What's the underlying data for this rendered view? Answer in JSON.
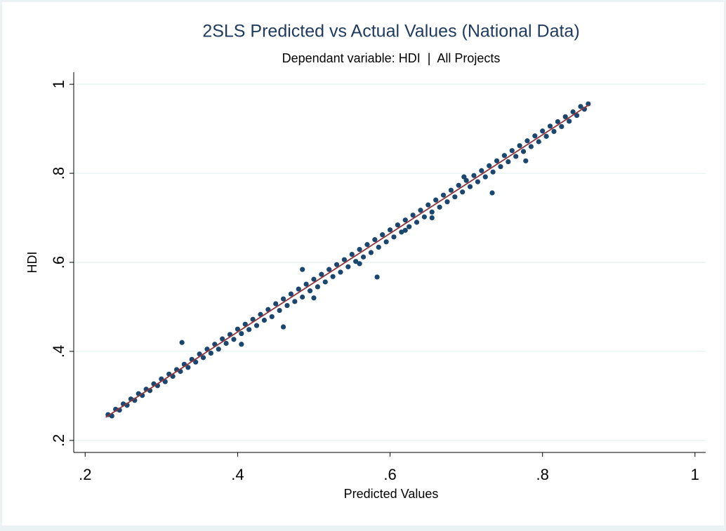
{
  "chart_data": {
    "type": "scatter",
    "title": "2SLS Predicted vs Actual Values (National Data)",
    "subtitle": "Dependant variable: HDI  |  All Projects",
    "x_label": "Predicted Values",
    "y_label": "HDI",
    "color": "#1a476f",
    "xlim": [
      0.185,
      1.014
    ],
    "ylim": [
      0.173,
      1.027
    ],
    "xticks": [
      {
        "value": 0.2,
        "label": ".2"
      },
      {
        "value": 0.4,
        "label": ".4"
      },
      {
        "value": 0.6,
        "label": ".6"
      },
      {
        "value": 0.8,
        "label": ".8"
      },
      1
    ],
    "yticks": [
      {
        "value": 0.2,
        "label": ".2"
      },
      {
        "value": 0.4,
        "label": ".4"
      },
      {
        "value": 0.6,
        "label": ".6"
      },
      {
        "value": 0.8,
        "label": ".8"
      },
      1
    ],
    "grid": true,
    "x": [
      0.23,
      0.235,
      0.24,
      0.245,
      0.25,
      0.255,
      0.26,
      0.265,
      0.27,
      0.275,
      0.28,
      0.285,
      0.29,
      0.295,
      0.3,
      0.305,
      0.31,
      0.315,
      0.32,
      0.325,
      0.33,
      0.335,
      0.34,
      0.345,
      0.35,
      0.355,
      0.36,
      0.365,
      0.37,
      0.375,
      0.38,
      0.385,
      0.39,
      0.395,
      0.4,
      0.405,
      0.41,
      0.415,
      0.42,
      0.425,
      0.43,
      0.435,
      0.44,
      0.445,
      0.45,
      0.455,
      0.46,
      0.465,
      0.47,
      0.475,
      0.48,
      0.485,
      0.49,
      0.495,
      0.5,
      0.505,
      0.51,
      0.515,
      0.52,
      0.525,
      0.53,
      0.535,
      0.54,
      0.545,
      0.55,
      0.555,
      0.56,
      0.565,
      0.57,
      0.575,
      0.58,
      0.585,
      0.59,
      0.595,
      0.6,
      0.605,
      0.61,
      0.615,
      0.62,
      0.625,
      0.63,
      0.635,
      0.64,
      0.645,
      0.65,
      0.655,
      0.66,
      0.665,
      0.67,
      0.675,
      0.68,
      0.685,
      0.69,
      0.695,
      0.7,
      0.705,
      0.71,
      0.715,
      0.72,
      0.725,
      0.73,
      0.735,
      0.74,
      0.745,
      0.75,
      0.755,
      0.76,
      0.765,
      0.77,
      0.775,
      0.78,
      0.785,
      0.79,
      0.795,
      0.8,
      0.805,
      0.81,
      0.815,
      0.82,
      0.825,
      0.83,
      0.835,
      0.84,
      0.845,
      0.85,
      0.855,
      0.86,
      0.327,
      0.485,
      0.583,
      0.778,
      0.734,
      0.5,
      0.46,
      0.405,
      0.62,
      0.655,
      0.697,
      0.56
    ],
    "y": [
      0.258,
      0.255,
      0.27,
      0.268,
      0.282,
      0.279,
      0.293,
      0.29,
      0.305,
      0.301,
      0.315,
      0.312,
      0.327,
      0.323,
      0.338,
      0.332,
      0.349,
      0.344,
      0.359,
      0.355,
      0.371,
      0.364,
      0.382,
      0.376,
      0.394,
      0.386,
      0.405,
      0.396,
      0.416,
      0.405,
      0.428,
      0.418,
      0.438,
      0.427,
      0.45,
      0.44,
      0.461,
      0.449,
      0.472,
      0.458,
      0.483,
      0.47,
      0.494,
      0.478,
      0.507,
      0.492,
      0.518,
      0.503,
      0.529,
      0.512,
      0.54,
      0.522,
      0.551,
      0.536,
      0.562,
      0.545,
      0.573,
      0.556,
      0.584,
      0.568,
      0.595,
      0.578,
      0.606,
      0.59,
      0.618,
      0.602,
      0.629,
      0.612,
      0.64,
      0.622,
      0.651,
      0.634,
      0.662,
      0.646,
      0.673,
      0.657,
      0.684,
      0.668,
      0.695,
      0.68,
      0.706,
      0.69,
      0.717,
      0.702,
      0.729,
      0.713,
      0.74,
      0.724,
      0.751,
      0.736,
      0.762,
      0.747,
      0.773,
      0.758,
      0.784,
      0.77,
      0.795,
      0.781,
      0.806,
      0.792,
      0.817,
      0.803,
      0.828,
      0.815,
      0.84,
      0.826,
      0.851,
      0.838,
      0.862,
      0.849,
      0.873,
      0.86,
      0.884,
      0.871,
      0.895,
      0.883,
      0.906,
      0.894,
      0.916,
      0.905,
      0.927,
      0.917,
      0.938,
      0.93,
      0.95,
      0.944,
      0.956,
      0.42,
      0.584,
      0.567,
      0.828,
      0.756,
      0.52,
      0.455,
      0.416,
      0.672,
      0.7,
      0.792,
      0.597
    ],
    "fit_line": {
      "color": "#90353b",
      "x": [
        0.227,
        0.861
      ],
      "y": [
        0.252,
        0.954
      ]
    }
  }
}
